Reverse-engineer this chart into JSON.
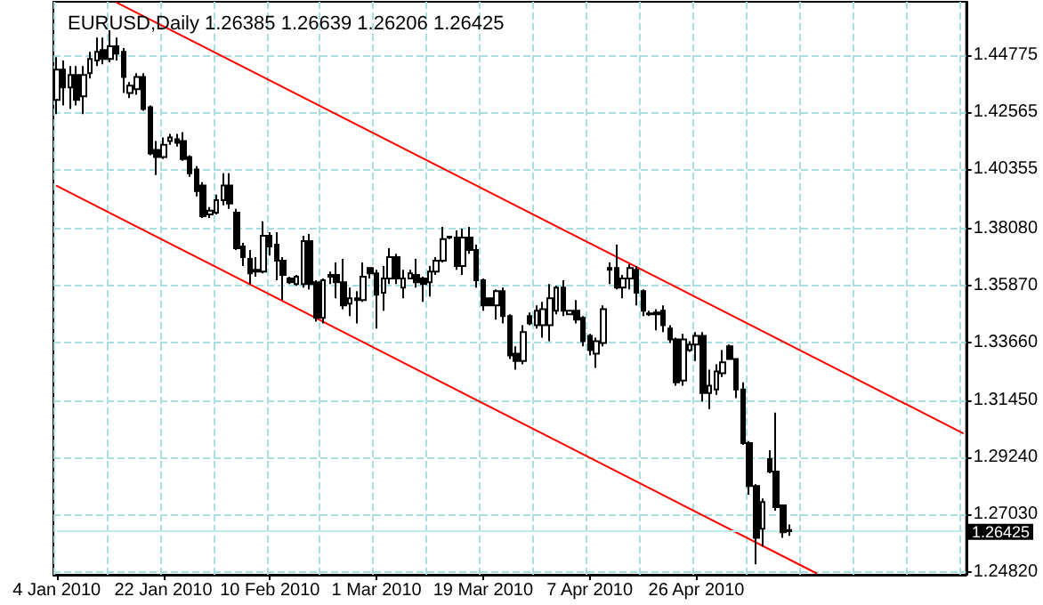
{
  "chart_data": {
    "type": "candlestick",
    "title": "EURUSD,Daily 1.26385 1.26639 1.26206 1.26425",
    "color": "#000000",
    "categories": [
      "4 Jan 2010",
      null,
      null,
      null,
      null,
      null,
      null,
      null,
      null,
      null,
      null,
      null,
      null,
      null,
      null,
      null,
      "22 Jan 2010",
      null,
      null,
      null,
      null,
      null,
      null,
      null,
      null,
      null,
      null,
      null,
      null,
      null,
      null,
      null,
      "10 Feb 2010",
      null,
      null,
      null,
      null,
      null,
      null,
      null,
      null,
      null,
      null,
      null,
      null,
      null,
      null,
      null,
      "1 Mar 2010",
      null,
      null,
      null,
      null,
      null,
      null,
      null,
      null,
      null,
      null,
      null,
      null,
      null,
      null,
      null,
      "19 Mar 2010",
      null,
      null,
      null,
      null,
      null,
      null,
      null,
      null,
      null,
      null,
      null,
      null,
      null,
      null,
      null,
      "7 Apr 2010",
      null,
      null,
      null,
      null,
      null,
      null,
      null,
      null,
      null,
      null,
      null,
      null,
      null,
      null,
      null,
      "26 Apr 2010",
      null,
      null,
      null,
      null,
      null,
      null,
      null,
      null,
      null,
      null,
      null,
      null,
      null,
      null,
      null,
      null,
      null,
      null,
      null,
      null,
      null,
      null,
      null,
      null,
      null,
      null,
      null,
      null,
      null,
      null,
      null,
      null,
      null,
      null,
      null,
      null,
      null,
      null,
      null,
      null
    ],
    "ohlc": [
      [
        1.4304,
        1.4469,
        1.4249,
        1.4421
      ],
      [
        1.4421,
        1.4456,
        1.4283,
        1.4352
      ],
      [
        1.4352,
        1.4435,
        1.4269,
        1.44
      ],
      [
        1.44,
        1.4435,
        1.4283,
        1.4304
      ],
      [
        1.4318,
        1.4435,
        1.4249,
        1.44
      ],
      [
        1.4407,
        1.449,
        1.4387,
        1.4462
      ],
      [
        1.4456,
        1.4545,
        1.4435,
        1.449
      ],
      [
        1.4497,
        1.4545,
        1.4442,
        1.4462
      ],
      [
        1.4462,
        1.4573,
        1.4449,
        1.4511
      ],
      [
        1.4511,
        1.4545,
        1.4456,
        1.4483
      ],
      [
        1.449,
        1.4504,
        1.4331,
        1.4393
      ],
      [
        1.4331,
        1.4373,
        1.4311,
        1.4359
      ],
      [
        1.4345,
        1.4407,
        1.4324,
        1.4393
      ],
      [
        1.4393,
        1.4407,
        1.4262,
        1.4269
      ],
      [
        1.4276,
        1.4283,
        1.409,
        1.4097
      ],
      [
        1.4111,
        1.4145,
        1.4014,
        1.4083
      ],
      [
        1.4083,
        1.4159,
        1.4076,
        1.4131
      ],
      [
        1.4145,
        1.4173,
        1.4131,
        1.4159
      ],
      [
        1.4152,
        1.4173,
        1.4124,
        1.4138
      ],
      [
        1.4145,
        1.418,
        1.4069,
        1.4076
      ],
      [
        1.4083,
        1.409,
        1.4007,
        1.4021
      ],
      [
        1.4035,
        1.4048,
        1.3931,
        1.3952
      ],
      [
        1.3973,
        1.3986,
        1.3848,
        1.3855
      ],
      [
        1.3862,
        1.389,
        1.3848,
        1.3876
      ],
      [
        1.3869,
        1.3938,
        1.3862,
        1.3917
      ],
      [
        1.3917,
        1.4021,
        1.3897,
        1.3973
      ],
      [
        1.3973,
        1.4021,
        1.3883,
        1.3904
      ],
      [
        1.3869,
        1.3883,
        1.3724,
        1.3731
      ],
      [
        1.3738,
        1.3752,
        1.3662,
        1.3697
      ],
      [
        1.369,
        1.3724,
        1.3593,
        1.3634
      ],
      [
        1.3641,
        1.3697,
        1.3621,
        1.3648
      ],
      [
        1.3641,
        1.3835,
        1.3634,
        1.3779
      ],
      [
        1.3779,
        1.3793,
        1.3703,
        1.3738
      ],
      [
        1.3745,
        1.3793,
        1.3607,
        1.3683
      ],
      [
        1.3683,
        1.3697,
        1.3531,
        1.3628
      ],
      [
        1.3614,
        1.3621,
        1.3593,
        1.36
      ],
      [
        1.3593,
        1.3628,
        1.3586,
        1.3621
      ],
      [
        1.3593,
        1.3779,
        1.3579,
        1.3759
      ],
      [
        1.3759,
        1.3786,
        1.3572,
        1.3593
      ],
      [
        1.36,
        1.3607,
        1.3448,
        1.3462
      ],
      [
        1.3462,
        1.3614,
        1.3441,
        1.3607
      ],
      [
        1.3621,
        1.3641,
        1.3593,
        1.3628
      ],
      [
        1.3628,
        1.3676,
        1.3538,
        1.36
      ],
      [
        1.36,
        1.369,
        1.3496,
        1.351
      ],
      [
        1.3517,
        1.3579,
        1.3469,
        1.3538
      ],
      [
        1.3531,
        1.3565,
        1.3441,
        1.3538
      ],
      [
        1.3531,
        1.3676,
        1.3524,
        1.3621
      ],
      [
        1.3655,
        1.3655,
        1.3614,
        1.3634
      ],
      [
        1.3634,
        1.3648,
        1.3421,
        1.3552
      ],
      [
        1.3559,
        1.3662,
        1.349,
        1.3614
      ],
      [
        1.3614,
        1.3731,
        1.3593,
        1.3697
      ],
      [
        1.3697,
        1.371,
        1.3593,
        1.3614
      ],
      [
        1.3579,
        1.3648,
        1.3538,
        1.3614
      ],
      [
        1.3614,
        1.3648,
        1.3614,
        1.3634
      ],
      [
        1.3628,
        1.369,
        1.3579,
        1.36
      ],
      [
        1.3614,
        1.3621,
        1.3524,
        1.3593
      ],
      [
        1.36,
        1.3662,
        1.3545,
        1.3641
      ],
      [
        1.3641,
        1.3697,
        1.3628,
        1.3683
      ],
      [
        1.3683,
        1.3814,
        1.3676,
        1.3766
      ],
      [
        1.3772,
        1.3779,
        1.3766,
        1.3776
      ],
      [
        1.3772,
        1.38,
        1.3648,
        1.3662
      ],
      [
        1.3662,
        1.3807,
        1.3628,
        1.3772
      ],
      [
        1.3772,
        1.3814,
        1.371,
        1.3724
      ],
      [
        1.3724,
        1.3745,
        1.3579,
        1.3607
      ],
      [
        1.3607,
        1.3614,
        1.349,
        1.351
      ],
      [
        1.3538,
        1.3538,
        1.351,
        1.351
      ],
      [
        1.351,
        1.3572,
        1.3455,
        1.3565
      ],
      [
        1.3565,
        1.3579,
        1.3441,
        1.3469
      ],
      [
        1.3469,
        1.3476,
        1.3303,
        1.3317
      ],
      [
        1.3324,
        1.3352,
        1.3262,
        1.3296
      ],
      [
        1.3296,
        1.3434,
        1.3283,
        1.3407
      ],
      [
        1.3469,
        1.3483,
        1.3434,
        1.3441
      ],
      [
        1.3434,
        1.351,
        1.3421,
        1.349
      ],
      [
        1.3434,
        1.3524,
        1.3386,
        1.3496
      ],
      [
        1.3434,
        1.3593,
        1.3372,
        1.3538
      ],
      [
        1.349,
        1.3586,
        1.3476,
        1.3579
      ],
      [
        1.3579,
        1.3607,
        1.3469,
        1.349
      ],
      [
        1.3476,
        1.349,
        1.3476,
        1.349
      ],
      [
        1.349,
        1.3531,
        1.3441,
        1.3455
      ],
      [
        1.3462,
        1.3469,
        1.3352,
        1.3372
      ],
      [
        1.3393,
        1.34,
        1.3317,
        1.3338
      ],
      [
        1.3324,
        1.3386,
        1.3269,
        1.3372
      ],
      [
        1.3365,
        1.351,
        1.3352,
        1.3496
      ],
      [
        1.3648,
        1.3676,
        1.3593,
        1.3655
      ],
      [
        1.3655,
        1.3745,
        1.3572,
        1.3579
      ],
      [
        1.3579,
        1.3628,
        1.3538,
        1.3614
      ],
      [
        1.3614,
        1.3669,
        1.3572,
        1.3655
      ],
      [
        1.3648,
        1.3662,
        1.351,
        1.3559
      ],
      [
        1.3565,
        1.3572,
        1.3469,
        1.349
      ],
      [
        1.3476,
        1.349,
        1.3469,
        1.3479
      ],
      [
        1.3483,
        1.3496,
        1.3414,
        1.3476
      ],
      [
        1.349,
        1.351,
        1.3407,
        1.3434
      ],
      [
        1.3421,
        1.3434,
        1.3365,
        1.3379
      ],
      [
        1.3379,
        1.3386,
        1.32,
        1.3213
      ],
      [
        1.322,
        1.34,
        1.32,
        1.3379
      ],
      [
        1.3338,
        1.3372,
        1.3331,
        1.3359
      ],
      [
        1.3359,
        1.3407,
        1.3296,
        1.3393
      ],
      [
        1.3393,
        1.3407,
        1.3138,
        1.3172
      ],
      [
        1.3172,
        1.3262,
        1.311,
        1.32
      ],
      [
        1.3186,
        1.3283,
        1.3165,
        1.3255
      ],
      [
        1.3248,
        1.3338,
        1.3234,
        1.329
      ],
      [
        1.3352,
        1.3359,
        1.3303,
        1.3303
      ],
      [
        1.3303,
        1.3303,
        1.3152,
        1.3186
      ],
      [
        1.3186,
        1.3213,
        1.2972,
        1.2979
      ],
      [
        1.2979,
        1.2986,
        1.2779,
        1.2813
      ],
      [
        1.2813,
        1.282,
        1.251,
        1.2613
      ],
      [
        1.2648,
        1.2765,
        1.2579,
        1.2751
      ],
      [
        1.2917,
        1.2951,
        1.2862,
        1.2869
      ],
      [
        1.2869,
        1.3096,
        1.2717,
        1.2731
      ],
      [
        1.2738,
        1.2738,
        1.2613,
        1.2634
      ],
      [
        1.26385,
        1.26639,
        1.26206,
        1.26425
      ],
      null,
      null,
      null,
      null,
      null,
      null,
      null,
      null,
      null,
      null,
      null,
      null,
      null,
      null,
      null,
      null,
      null,
      null,
      null,
      null,
      null,
      null,
      null,
      null,
      null,
      null
    ],
    "series": [
      {
        "type": "line",
        "color": "#ff0000",
        "values": [
          null,
          null,
          null,
          null,
          null,
          null,
          null,
          null,
          null,
          1.468,
          null,
          null,
          null,
          null,
          null,
          null,
          null,
          null,
          null,
          null,
          null,
          null,
          null,
          null,
          null,
          null,
          null,
          null,
          null,
          null,
          null,
          null,
          null,
          null,
          null,
          null,
          null,
          null,
          null,
          null,
          null,
          null,
          null,
          null,
          null,
          null,
          null,
          null,
          null,
          null,
          null,
          null,
          null,
          null,
          null,
          null,
          null,
          null,
          null,
          null,
          null,
          null,
          null,
          null,
          null,
          null,
          null,
          null,
          null,
          null,
          null,
          null,
          null,
          null,
          null,
          null,
          null,
          null,
          null,
          null,
          null,
          null,
          null,
          null,
          null,
          null,
          null,
          null,
          null,
          null,
          null,
          null,
          null,
          null,
          null,
          null,
          null,
          null,
          null,
          null,
          null,
          null,
          null,
          null,
          null,
          null,
          null,
          null,
          null,
          null,
          null,
          null,
          null,
          null,
          null,
          null,
          null,
          null,
          null,
          null,
          null,
          null,
          null,
          null,
          null,
          null,
          null,
          null,
          null,
          null,
          null,
          null,
          null,
          null,
          null,
          null,
          1.3017
        ]
      },
      {
        "type": "line",
        "color": "#ff0000",
        "values": [
          1.3972,
          null,
          null,
          null,
          null,
          null,
          null,
          null,
          null,
          null,
          null,
          null,
          null,
          null,
          null,
          null,
          null,
          null,
          null,
          null,
          null,
          null,
          null,
          null,
          null,
          null,
          null,
          null,
          null,
          null,
          null,
          null,
          null,
          null,
          null,
          null,
          null,
          null,
          null,
          null,
          null,
          null,
          null,
          null,
          null,
          null,
          null,
          null,
          null,
          null,
          null,
          null,
          null,
          null,
          null,
          null,
          null,
          null,
          null,
          null,
          null,
          null,
          null,
          null,
          null,
          null,
          null,
          null,
          null,
          null,
          null,
          null,
          null,
          null,
          null,
          null,
          null,
          null,
          null,
          null,
          null,
          null,
          null,
          null,
          null,
          null,
          null,
          null,
          null,
          null,
          null,
          null,
          null,
          null,
          null,
          null,
          null,
          null,
          null,
          null,
          null,
          null,
          null,
          null,
          null,
          null,
          null,
          null,
          null,
          null,
          null,
          null,
          null,
          null,
          1.2476,
          null,
          null,
          null,
          null,
          null,
          null,
          null,
          null,
          null,
          null,
          null,
          null,
          null,
          null,
          null,
          null,
          null,
          null,
          null,
          null,
          null,
          null
        ]
      }
    ],
    "ylim": [
      1.247,
      1.4683
    ],
    "yticks": [
      {
        "value": 1.2482,
        "label": "1.24820"
      },
      {
        "value": 1.2703,
        "label": "1.27030"
      },
      {
        "value": 1.2924,
        "label": "1.29240"
      },
      {
        "value": 1.3145,
        "label": "1.31450"
      },
      {
        "value": 1.3366,
        "label": "1.33660"
      },
      {
        "value": 1.3587,
        "label": "1.35870"
      },
      {
        "value": 1.3808,
        "label": "1.38080"
      },
      {
        "value": 1.40355,
        "label": "1.40355"
      },
      {
        "value": 1.42565,
        "label": "1.42565"
      },
      {
        "value": 1.44775,
        "label": "1.44775"
      }
    ],
    "ref_lines": [
      {
        "axis": "y",
        "value": 1.26425,
        "label": "1.26425",
        "color": "#c0ecec"
      }
    ],
    "grid": true,
    "marker": "none",
    "line_style": "solid"
  }
}
